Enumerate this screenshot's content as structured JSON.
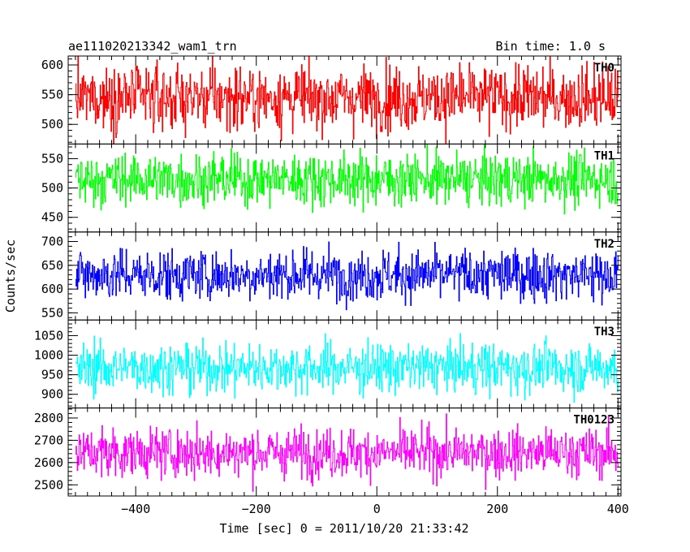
{
  "header": {
    "title": "ae111020213342_wam1_trn",
    "bin_time": "Bin time: 1.0 s"
  },
  "chart_data": {
    "type": "line",
    "xlabel": "Time [sec] 0 = 2011/10/20 21:33:42",
    "ylabel": "Counts/sec",
    "xlim": [
      -512,
      405
    ],
    "x_range_data": [
      -500,
      400
    ],
    "x_ticks": [
      -400,
      -200,
      0,
      200,
      400
    ],
    "x_tick_labels": [
      "−400",
      "−200",
      "0",
      "200",
      "400"
    ],
    "panels": [
      {
        "name": "TH0",
        "color": "#ff0000",
        "ylim": [
          467,
          615
        ],
        "y_ticks": [
          500,
          550,
          600
        ],
        "mean": 545,
        "std": 27
      },
      {
        "name": "TH1",
        "color": "#00ff00",
        "ylim": [
          425,
          575
        ],
        "y_ticks": [
          450,
          500,
          550
        ],
        "mean": 515,
        "std": 22
      },
      {
        "name": "TH2",
        "color": "#0000ff",
        "ylim": [
          535,
          720
        ],
        "y_ticks": [
          550,
          600,
          650,
          700
        ],
        "mean": 630,
        "std": 27
      },
      {
        "name": "TH3",
        "color": "#00ffff",
        "ylim": [
          865,
          1090
        ],
        "y_ticks": [
          900,
          950,
          1000,
          1050
        ],
        "mean": 968,
        "std": 32
      },
      {
        "name": "TH0123",
        "color": "#ff00ff",
        "ylim": [
          2450,
          2845
        ],
        "y_ticks": [
          2500,
          2600,
          2700,
          2800
        ],
        "mean": 2645,
        "std": 55
      }
    ]
  }
}
